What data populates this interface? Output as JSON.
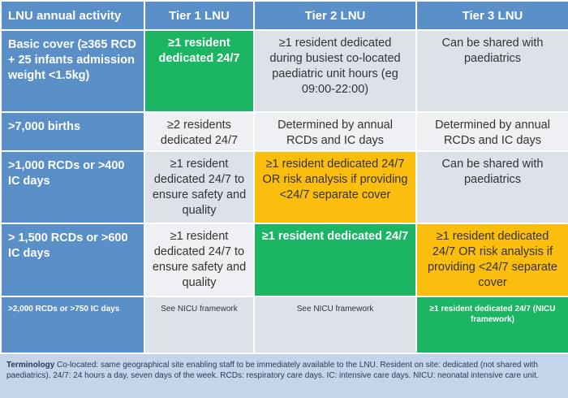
{
  "header": {
    "activity": "LNU annual activity",
    "tier1": "Tier 1 LNU",
    "tier2": "Tier 2 LNU",
    "tier3": "Tier 3 LNU"
  },
  "rows": [
    {
      "label": "Basic cover (≥365 RCD + 25 infants admission weight <1.5kg)",
      "tier1": "≥1 resident dedicated 24/7",
      "tier2": "≥1 resident dedicated during busiest co-located paediatric unit hours (eg 09:00-22:00)",
      "tier3": "Can be shared with paediatrics"
    },
    {
      "label": ">7,000 births",
      "tier1": "≥2 residents dedicated 24/7",
      "tier2": "Determined by annual RCDs and IC days",
      "tier3": "Determined by annual RCDs and IC days"
    },
    {
      "label": ">1,000 RCDs or >400 IC days",
      "tier1": "≥1 resident dedicated 24/7 to ensure safety and quality",
      "tier2": "≥1 resident dedicated 24/7 OR risk analysis if providing <24/7 separate cover",
      "tier3": "Can be shared with paediatrics"
    },
    {
      "label": "> 1,500 RCDs or >600 IC days",
      "tier1": "≥1 resident dedicated 24/7 to ensure safety and quality",
      "tier2": "≥1 resident dedicated 24/7",
      "tier3": "≥1 resident dedicated 24/7 OR risk analysis if providing <24/7 separate cover"
    },
    {
      "label": ">2,000 RCDs or >750 IC days",
      "tier1": "See NICU framework",
      "tier2": "See NICU framework",
      "tier3": "≥1 resident dedicated 24/7 (NICU framework)"
    }
  ],
  "terminology": {
    "heading": "Terminology",
    "text": " Co-located: same geographical site enabling staff to be immediately available to the LNU. Resident on site: dedicated (not shared with paediatrics). 24/7: 24 hours a day, seven days of the week. RCDs: respiratory care days. IC: intensive care days. NICU: neonatal intensive care unit."
  },
  "colors": {
    "header_blue": "#5a8fc8",
    "green": "#1bb563",
    "yellow": "#fbbd0e",
    "light_grey": "#eef0f4",
    "mid_grey": "#dde1e8",
    "terminology_bg": "#c4d4ea"
  }
}
